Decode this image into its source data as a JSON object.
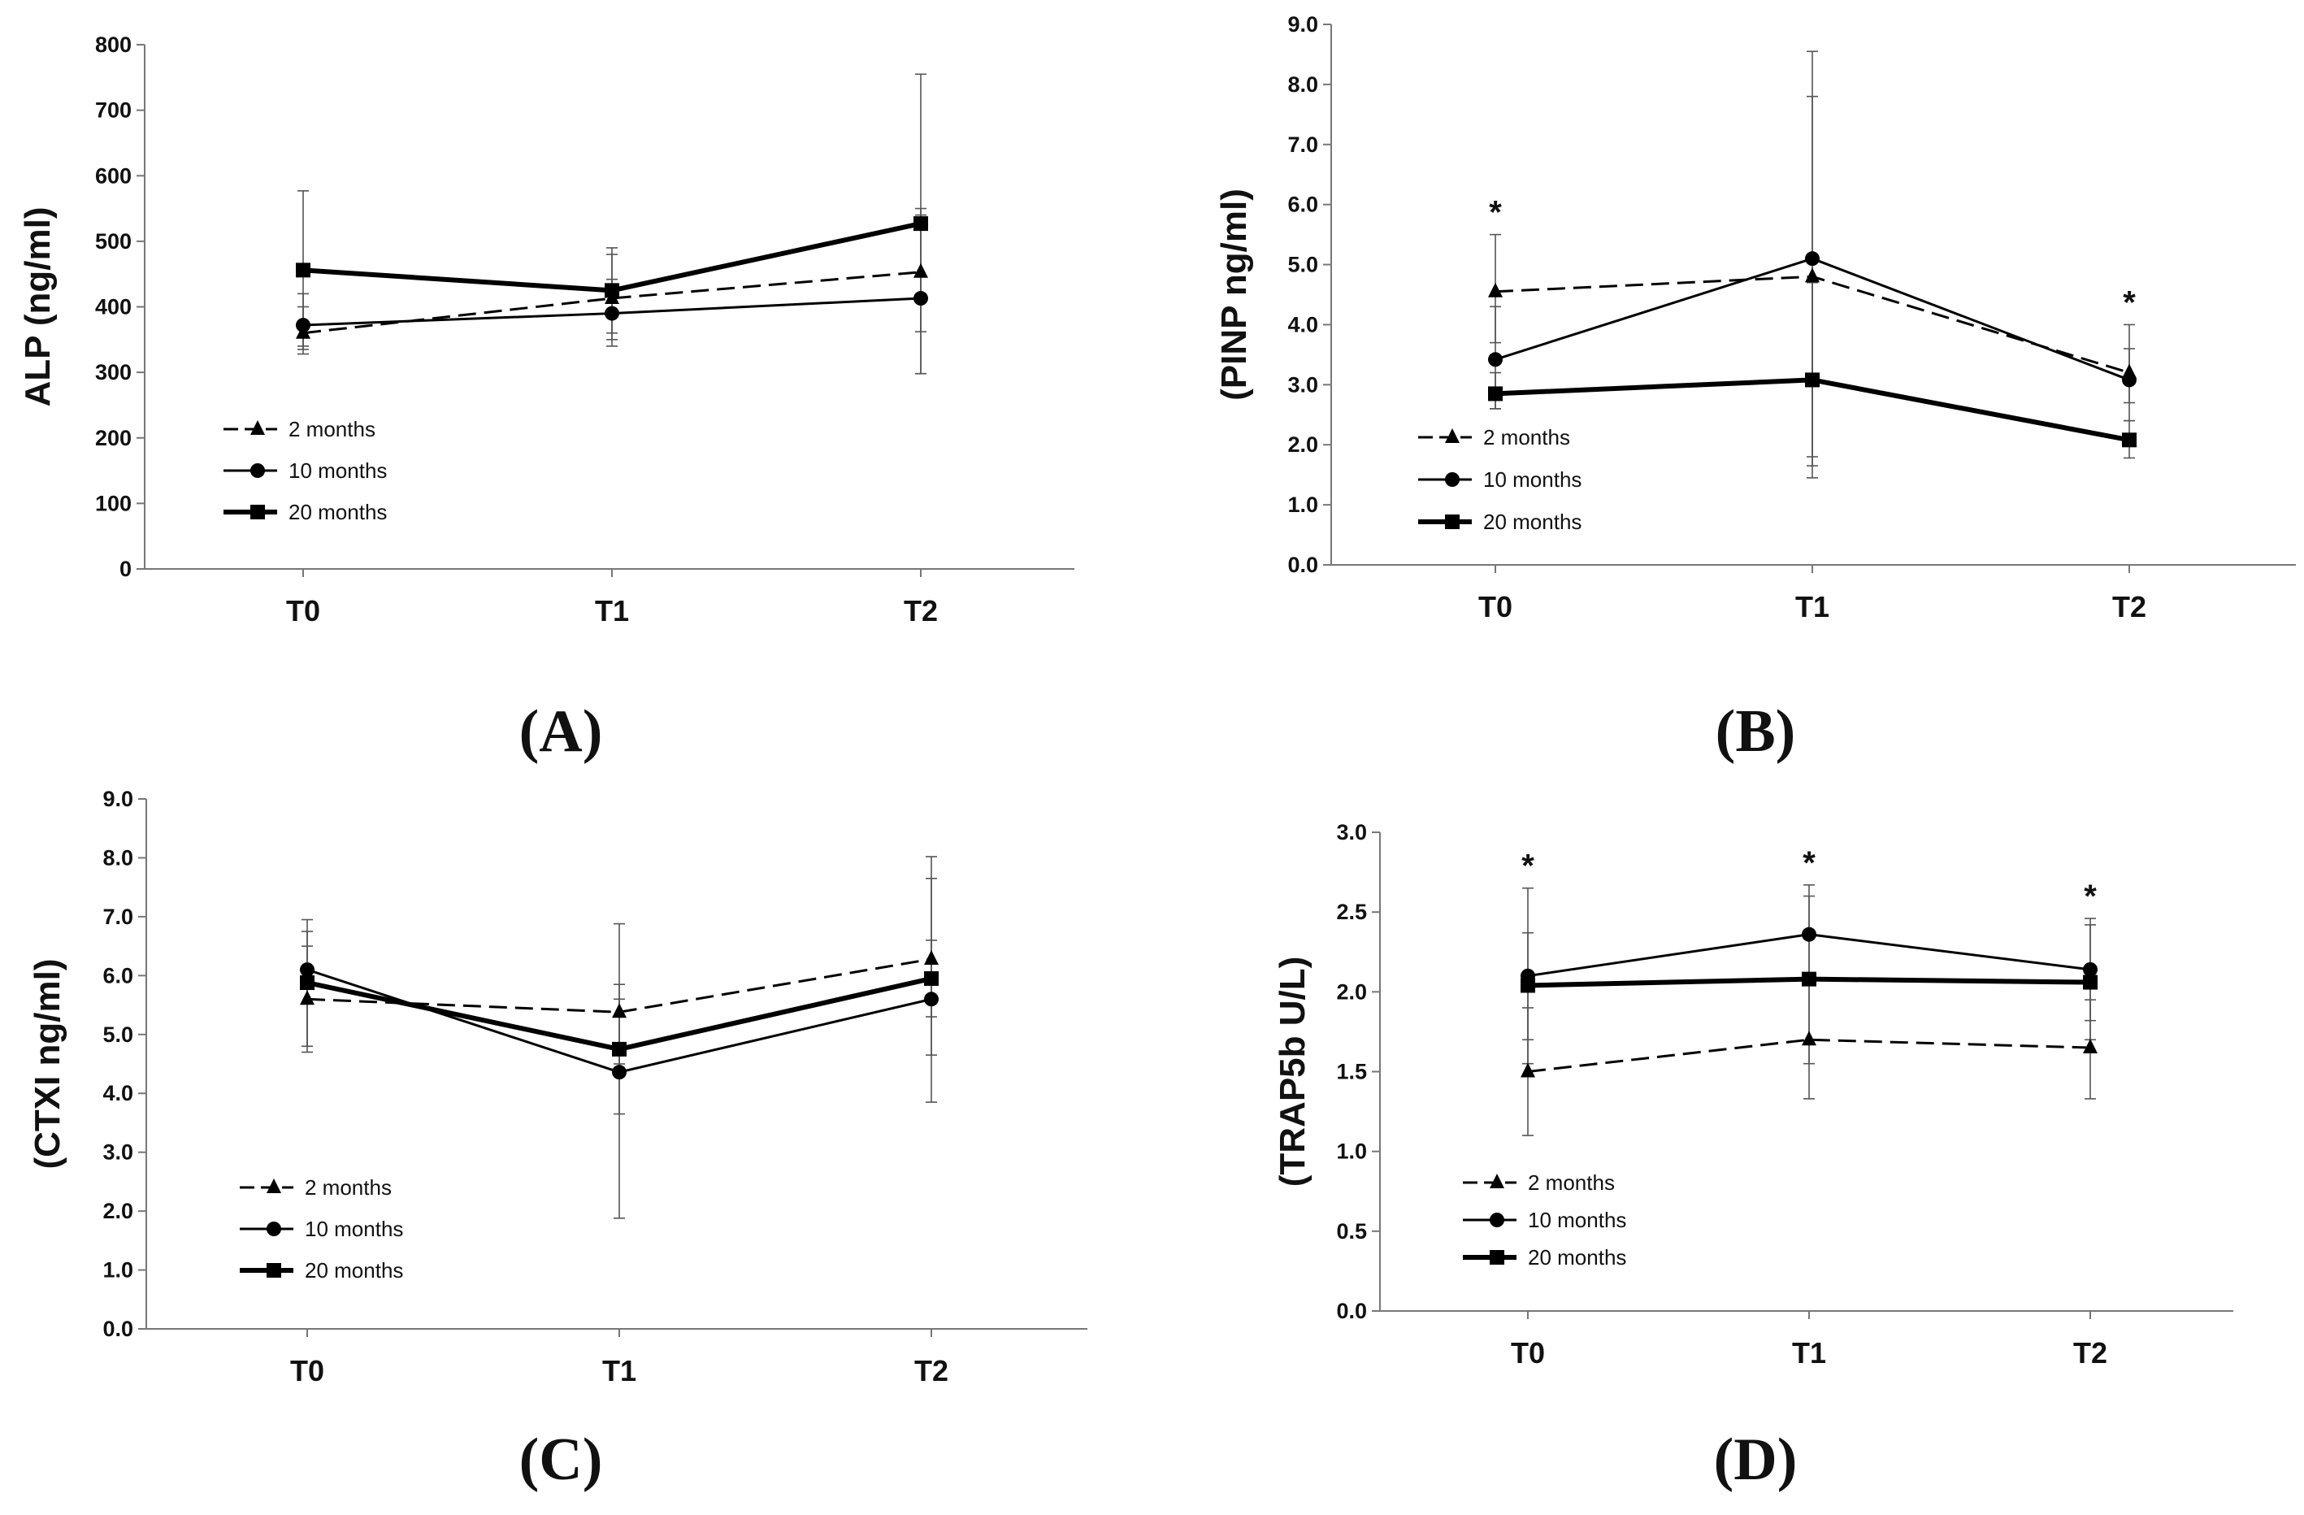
{
  "chart_data": [
    {
      "id": "A",
      "type": "line",
      "panel_label": "(A)",
      "ylabel": "ALP (ng/ml)",
      "categories": [
        "T0",
        "T1",
        "T2"
      ],
      "ylim": [
        0,
        800
      ],
      "yticks": [
        0,
        100,
        200,
        300,
        400,
        500,
        600,
        700,
        800
      ],
      "tick_format": "int",
      "series": [
        {
          "name": "2 months",
          "marker": "triangle",
          "dash": true,
          "width": 3,
          "values": [
            360,
            413,
            453
          ],
          "err_low": [
            328,
            350,
            362
          ],
          "err_high": [
            400,
            480,
            550
          ]
        },
        {
          "name": "10 months",
          "marker": "circle",
          "dash": false,
          "width": 3,
          "values": [
            372,
            390,
            413
          ],
          "err_low": [
            340,
            340,
            298
          ],
          "err_high": [
            420,
            442,
            540
          ]
        },
        {
          "name": "20 months",
          "marker": "square",
          "dash": false,
          "width": 6,
          "values": [
            456,
            425,
            527
          ],
          "err_low": [
            335,
            360,
            298
          ],
          "err_high": [
            577,
            490,
            755
          ]
        }
      ],
      "significance": [],
      "legend": [
        "2 months",
        "10 months",
        "20 months"
      ]
    },
    {
      "id": "B",
      "type": "line",
      "panel_label": "(B)",
      "ylabel": "(PINP ng/ml)",
      "categories": [
        "T0",
        "T1",
        "T2"
      ],
      "ylim": [
        0,
        9
      ],
      "yticks": [
        0,
        1,
        2,
        3,
        4,
        5,
        6,
        7,
        8,
        9
      ],
      "tick_format": "1dp",
      "series": [
        {
          "name": "2 months",
          "marker": "triangle",
          "dash": true,
          "width": 3,
          "values": [
            4.55,
            4.8,
            3.2
          ],
          "err_low": [
            3.7,
            1.8,
            2.7
          ],
          "err_high": [
            5.5,
            7.8,
            3.6
          ]
        },
        {
          "name": "10 months",
          "marker": "circle",
          "dash": false,
          "width": 3,
          "values": [
            3.42,
            5.1,
            3.08
          ],
          "err_low": [
            2.6,
            1.65,
            2.4
          ],
          "err_high": [
            4.3,
            8.55,
            4.0
          ]
        },
        {
          "name": "20 months",
          "marker": "square",
          "dash": false,
          "width": 6,
          "values": [
            2.85,
            3.08,
            2.08
          ],
          "err_low": [
            2.6,
            1.45,
            1.78
          ],
          "err_high": [
            3.2,
            4.7,
            2.4
          ]
        }
      ],
      "significance": [
        {
          "category": "T0",
          "label": "*"
        },
        {
          "category": "T2",
          "label": "*"
        }
      ],
      "legend": [
        "2 months",
        "10 months",
        "20 months"
      ]
    },
    {
      "id": "C",
      "type": "line",
      "panel_label": "(C)",
      "ylabel": "(CTXI ng/ml)",
      "categories": [
        "T0",
        "T1",
        "T2"
      ],
      "ylim": [
        0,
        9
      ],
      "yticks": [
        0,
        1,
        2,
        3,
        4,
        5,
        6,
        7,
        8,
        9
      ],
      "tick_format": "1dp",
      "series": [
        {
          "name": "2 months",
          "marker": "triangle",
          "dash": true,
          "width": 3,
          "values": [
            5.6,
            5.38,
            6.28
          ],
          "err_low": [
            4.8,
            4.5,
            5.3
          ],
          "err_high": [
            6.5,
            5.85,
            7.65
          ]
        },
        {
          "name": "10 months",
          "marker": "circle",
          "dash": false,
          "width": 3,
          "values": [
            6.1,
            4.36,
            5.6
          ],
          "err_low": [
            4.7,
            1.88,
            3.85
          ],
          "err_high": [
            6.95,
            6.88,
            6.6
          ]
        },
        {
          "name": "20 months",
          "marker": "square",
          "dash": false,
          "width": 6,
          "values": [
            5.88,
            4.75,
            5.95
          ],
          "err_low": [
            4.8,
            3.65,
            4.65
          ],
          "err_high": [
            6.75,
            5.6,
            8.02
          ]
        }
      ],
      "significance": [],
      "legend": [
        "2 months",
        "10 months",
        "20 months"
      ]
    },
    {
      "id": "D",
      "type": "line",
      "panel_label": "(D)",
      "ylabel": "(TRAP5b U/L)",
      "categories": [
        "T0",
        "T1",
        "T2"
      ],
      "ylim": [
        0,
        3
      ],
      "yticks": [
        0,
        0.5,
        1,
        1.5,
        2,
        2.5,
        3
      ],
      "tick_format": "1dp",
      "series": [
        {
          "name": "2 months",
          "marker": "triangle",
          "dash": true,
          "width": 3,
          "values": [
            1.5,
            1.7,
            1.65
          ],
          "err_low": [
            1.1,
            1.33,
            1.33
          ],
          "err_high": [
            1.9,
            2.05,
            1.95
          ]
        },
        {
          "name": "10 months",
          "marker": "circle",
          "dash": false,
          "width": 3,
          "values": [
            2.1,
            2.36,
            2.14
          ],
          "err_low": [
            1.55,
            2.05,
            1.82
          ],
          "err_high": [
            2.65,
            2.67,
            2.46
          ]
        },
        {
          "name": "20 months",
          "marker": "square",
          "dash": false,
          "width": 6,
          "values": [
            2.04,
            2.08,
            2.06
          ],
          "err_low": [
            1.7,
            1.55,
            1.7
          ],
          "err_high": [
            2.37,
            2.6,
            2.42
          ]
        }
      ],
      "significance": [
        {
          "category": "T0",
          "label": "*"
        },
        {
          "category": "T1",
          "label": "*"
        },
        {
          "category": "T2",
          "label": "*"
        }
      ],
      "legend": [
        "2 months",
        "10 months",
        "20 months"
      ]
    }
  ]
}
